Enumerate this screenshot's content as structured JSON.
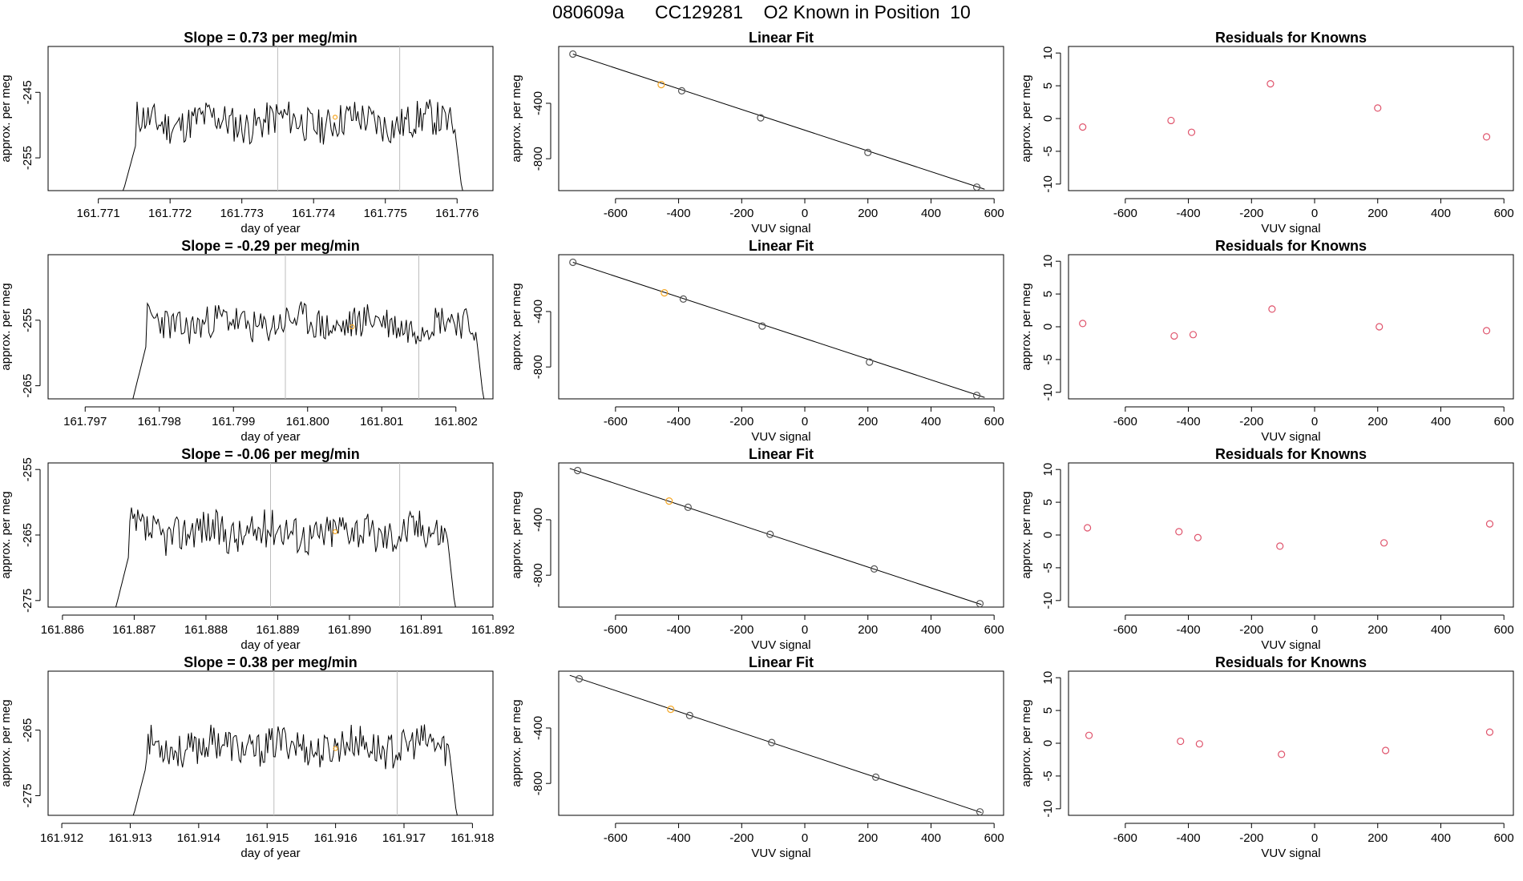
{
  "main_title": "080609a      CC129281    O2 Known in Position  10",
  "colors": {
    "line": "#000000",
    "vline": "#bebebe",
    "point_known": "#df536b",
    "point_highlight": "#f5a623",
    "axis": "#000000"
  },
  "chart_data": [
    {
      "type": "line",
      "panel": "time-1",
      "title": "Slope =  0.73  per meg/min",
      "xlabel": "day of year",
      "ylabel": "approx. per meg",
      "xlim": [
        161.7703,
        161.7765
      ],
      "ylim": [
        -260,
        -238
      ],
      "xticks": [
        "161.771",
        "161.772",
        "161.773",
        "161.774",
        "161.775",
        "161.776"
      ],
      "yticks": [
        "-245",
        "-255"
      ],
      "vlines": [
        161.7735,
        161.7752
      ],
      "trace": {
        "start": 161.7713,
        "end": 161.7761,
        "base": -249.5,
        "amp": 2.8,
        "seed": 11
      },
      "highlight": {
        "x": 161.7743,
        "y": -248.8
      }
    },
    {
      "type": "scatter",
      "panel": "fit-1",
      "title": "Linear Fit",
      "xlabel": "VUV signal",
      "ylabel": "approx. per meg",
      "xlim": [
        -780,
        630
      ],
      "ylim": [
        -1030,
        10
      ],
      "xticks": [
        "-600",
        "-400",
        "-200",
        "0",
        "200",
        "400",
        "600"
      ],
      "yticks": [
        "-400",
        "-800"
      ],
      "x": [
        -735,
        -455,
        -390,
        -140,
        200,
        545
      ],
      "y": [
        -45,
        -265,
        -310,
        -505,
        -755,
        -1005
      ],
      "highlight_index": 1,
      "fit": {
        "x": [
          -735,
          570
        ],
        "y": [
          -45,
          -1020
        ]
      }
    },
    {
      "type": "scatter",
      "panel": "resid-1",
      "title": "Residuals for Knowns",
      "xlabel": "VUV signal",
      "ylabel": "approx. per meg",
      "xlim": [
        -780,
        630
      ],
      "ylim": [
        -11,
        11
      ],
      "xticks": [
        "-600",
        "-400",
        "-200",
        "0",
        "200",
        "400",
        "600"
      ],
      "yticks": [
        "10",
        "5",
        "0",
        "-5",
        "-10"
      ],
      "x": [
        -735,
        -455,
        -390,
        -140,
        200,
        545
      ],
      "y": [
        -1.3,
        -0.3,
        -2.1,
        5.3,
        1.6,
        -2.8
      ]
    },
    {
      "type": "line",
      "panel": "time-2",
      "title": "Slope =  -0.29  per meg/min",
      "xlabel": "day of year",
      "ylabel": "approx. per meg",
      "xlim": [
        161.7965,
        161.8025
      ],
      "ylim": [
        -267,
        -245
      ],
      "xticks": [
        "161.797",
        "161.798",
        "161.799",
        "161.800",
        "161.801",
        "161.802"
      ],
      "yticks": [
        "-255",
        "-265"
      ],
      "vlines": [
        161.7997,
        161.8015
      ],
      "trace": {
        "start": 161.7976,
        "end": 161.8024,
        "base": -255.5,
        "amp": 2.6,
        "seed": 23
      },
      "highlight": {
        "x": 161.8006,
        "y": -256.0
      }
    },
    {
      "type": "scatter",
      "panel": "fit-2",
      "title": "Linear Fit",
      "xlabel": "VUV signal",
      "ylabel": "approx. per meg",
      "xlim": [
        -780,
        630
      ],
      "ylim": [
        -1030,
        10
      ],
      "xticks": [
        "-600",
        "-400",
        "-200",
        "0",
        "200",
        "400",
        "600"
      ],
      "yticks": [
        "-400",
        "-800"
      ],
      "x": [
        -735,
        -445,
        -385,
        -135,
        205,
        545
      ],
      "y": [
        -45,
        -265,
        -310,
        -505,
        -765,
        -1005
      ],
      "highlight_index": 1,
      "fit": {
        "x": [
          -735,
          570
        ],
        "y": [
          -45,
          -1020
        ]
      }
    },
    {
      "type": "scatter",
      "panel": "resid-2",
      "title": "Residuals for Knowns",
      "xlabel": "VUV signal",
      "ylabel": "approx. per meg",
      "xlim": [
        -780,
        630
      ],
      "ylim": [
        -11,
        11
      ],
      "xticks": [
        "-600",
        "-400",
        "-200",
        "0",
        "200",
        "400",
        "600"
      ],
      "yticks": [
        "10",
        "5",
        "0",
        "-5",
        "-10"
      ],
      "x": [
        -735,
        -445,
        -385,
        -135,
        205,
        545
      ],
      "y": [
        0.5,
        -1.4,
        -1.2,
        2.7,
        0.0,
        -0.6
      ]
    },
    {
      "type": "line",
      "panel": "time-3",
      "title": "Slope =  -0.06  per meg/min",
      "xlabel": "day of year",
      "ylabel": "approx. per meg",
      "xlim": [
        161.8858,
        161.892
      ],
      "ylim": [
        -276,
        -254
      ],
      "xticks": [
        "161.886",
        "161.887",
        "161.888",
        "161.889",
        "161.890",
        "161.891",
        "161.892"
      ],
      "yticks": [
        "-255",
        "-265",
        "-275"
      ],
      "vlines": [
        161.8889,
        161.8907
      ],
      "trace": {
        "start": 161.8867,
        "end": 161.8915,
        "base": -264.5,
        "amp": 3.0,
        "seed": 37
      },
      "highlight": {
        "x": 161.8898,
        "y": -264.5
      }
    },
    {
      "type": "scatter",
      "panel": "fit-3",
      "title": "Linear Fit",
      "xlabel": "VUV signal",
      "ylabel": "approx. per meg",
      "xlim": [
        -780,
        630
      ],
      "ylim": [
        -1030,
        10
      ],
      "xticks": [
        "-600",
        "-400",
        "-200",
        "0",
        "200",
        "400",
        "600"
      ],
      "yticks": [
        "-400",
        "-800"
      ],
      "x": [
        -720,
        -430,
        -370,
        -110,
        220,
        555
      ],
      "y": [
        -45,
        -265,
        -310,
        -505,
        -755,
        -1005
      ],
      "highlight_index": 1,
      "fit": {
        "x": [
          -745,
          560
        ],
        "y": [
          -30,
          -1012
        ]
      }
    },
    {
      "type": "scatter",
      "panel": "resid-3",
      "title": "Residuals for Knowns",
      "xlabel": "VUV signal",
      "ylabel": "approx. per meg",
      "xlim": [
        -780,
        630
      ],
      "ylim": [
        -11,
        11
      ],
      "xticks": [
        "-600",
        "-400",
        "-200",
        "0",
        "200",
        "400",
        "600"
      ],
      "yticks": [
        "10",
        "5",
        "0",
        "-5",
        "-10"
      ],
      "x": [
        -720,
        -430,
        -370,
        -110,
        220,
        555
      ],
      "y": [
        1.1,
        0.5,
        -0.4,
        -1.7,
        -1.2,
        1.7
      ]
    },
    {
      "type": "line",
      "panel": "time-4",
      "title": "Slope =  0.38  per meg/min",
      "xlabel": "day of year",
      "ylabel": "approx. per meg",
      "xlim": [
        161.9118,
        161.9183
      ],
      "ylim": [
        -278,
        -256
      ],
      "xticks": [
        "161.912",
        "161.913",
        "161.914",
        "161.915",
        "161.916",
        "161.917",
        "161.918"
      ],
      "yticks": [
        "-265",
        "-275"
      ],
      "vlines": [
        161.9151,
        161.9169
      ],
      "trace": {
        "start": 161.913,
        "end": 161.9178,
        "base": -267.5,
        "amp": 2.7,
        "seed": 53
      },
      "highlight": {
        "x": 161.916,
        "y": -267.8
      }
    },
    {
      "type": "scatter",
      "panel": "fit-4",
      "title": "Linear Fit",
      "xlabel": "VUV signal",
      "ylabel": "approx. per meg",
      "xlim": [
        -780,
        630
      ],
      "ylim": [
        -1030,
        10
      ],
      "xticks": [
        "-600",
        "-400",
        "-200",
        "0",
        "200",
        "400",
        "600"
      ],
      "yticks": [
        "-400",
        "-800"
      ],
      "x": [
        -715,
        -425,
        -365,
        -105,
        225,
        555
      ],
      "y": [
        -45,
        -265,
        -310,
        -505,
        -755,
        -1005
      ],
      "highlight_index": 1,
      "fit": {
        "x": [
          -745,
          560
        ],
        "y": [
          -20,
          -1010
        ]
      }
    },
    {
      "type": "scatter",
      "panel": "resid-4",
      "title": "Residuals for Knowns",
      "xlabel": "VUV signal",
      "ylabel": "approx. per meg",
      "xlim": [
        -780,
        630
      ],
      "ylim": [
        -11,
        11
      ],
      "xticks": [
        "-600",
        "-400",
        "-200",
        "0",
        "200",
        "400",
        "600"
      ],
      "yticks": [
        "10",
        "5",
        "0",
        "-5",
        "-10"
      ],
      "x": [
        -715,
        -425,
        -365,
        -105,
        225,
        555
      ],
      "y": [
        1.2,
        0.3,
        -0.1,
        -1.7,
        -1.1,
        1.7
      ]
    }
  ]
}
